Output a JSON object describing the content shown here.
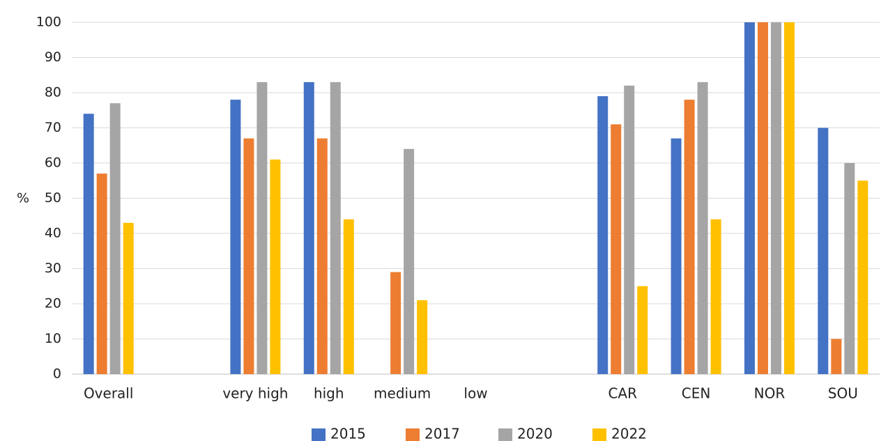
{
  "chart_data": {
    "type": "bar",
    "title": "",
    "xlabel": "",
    "ylabel": "%",
    "ylim": [
      0,
      100
    ],
    "yticks": [
      0,
      10,
      20,
      30,
      40,
      50,
      60,
      70,
      80,
      90,
      100
    ],
    "grid": true,
    "legend_position": "bottom",
    "categories": [
      "Overall",
      "",
      "very high",
      "high",
      "medium",
      "low",
      "",
      "CAR",
      "CEN",
      "NOR",
      "SOU"
    ],
    "series": [
      {
        "name": "2015",
        "color": "#4472C4",
        "values": [
          74,
          null,
          78,
          83,
          null,
          null,
          null,
          79,
          67,
          100,
          70
        ]
      },
      {
        "name": "2017",
        "color": "#ED7D31",
        "values": [
          57,
          null,
          67,
          67,
          29,
          null,
          null,
          71,
          78,
          100,
          10
        ]
      },
      {
        "name": "2020",
        "color": "#A5A5A5",
        "values": [
          77,
          null,
          83,
          83,
          64,
          null,
          null,
          82,
          83,
          100,
          60
        ]
      },
      {
        "name": "2022",
        "color": "#FFC000",
        "values": [
          43,
          null,
          61,
          44,
          21,
          null,
          null,
          25,
          44,
          100,
          55
        ]
      }
    ]
  }
}
